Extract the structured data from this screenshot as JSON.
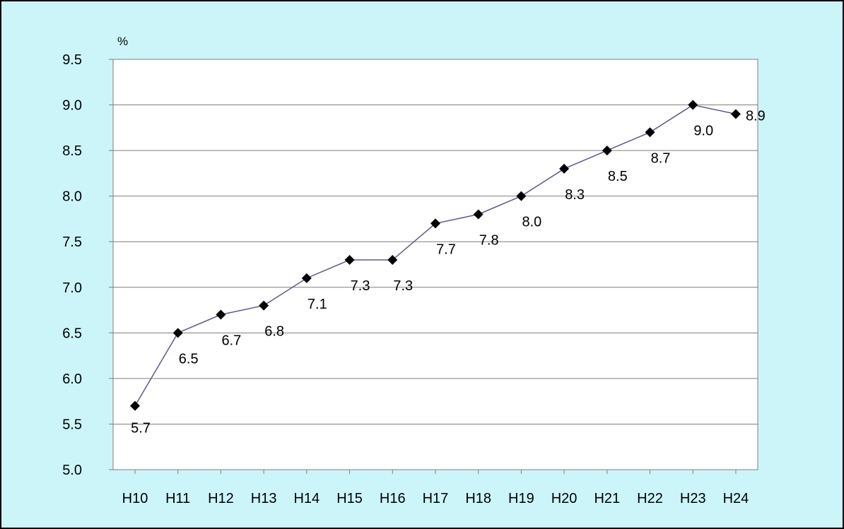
{
  "chart_data": {
    "type": "line",
    "title": "",
    "xlabel": "",
    "ylabel": "",
    "y_unit": "%",
    "categories": [
      "H10",
      "H11",
      "H12",
      "H13",
      "H14",
      "H15",
      "H16",
      "H17",
      "H18",
      "H19",
      "H20",
      "H21",
      "H22",
      "H23",
      "H24"
    ],
    "series": [
      {
        "values": [
          5.7,
          6.5,
          6.7,
          6.8,
          7.1,
          7.3,
          7.3,
          7.7,
          7.8,
          8.0,
          8.3,
          8.5,
          8.7,
          9.0,
          8.9
        ],
        "labels": [
          "5.7",
          "6.5",
          "6.7",
          "6.8",
          "7.1",
          "7.3",
          "7.3",
          "7.7",
          "7.8",
          "8.0",
          "8.3",
          "8.5",
          "8.7",
          "9.0",
          "8.9"
        ]
      }
    ],
    "ylim": [
      5.0,
      9.5
    ],
    "yticks": [
      "5.0",
      "5.5",
      "6.0",
      "6.5",
      "7.0",
      "7.5",
      "8.0",
      "8.5",
      "9.0",
      "9.5"
    ],
    "grid": true,
    "legend": "none",
    "marker": "diamond"
  },
  "colors": {
    "background": "#ccf5fa",
    "frame_border": "#000000",
    "plot_area": "#ffffff",
    "gridline": "#7f7f7f",
    "line": "#5a5a8a",
    "marker": "#000000"
  }
}
